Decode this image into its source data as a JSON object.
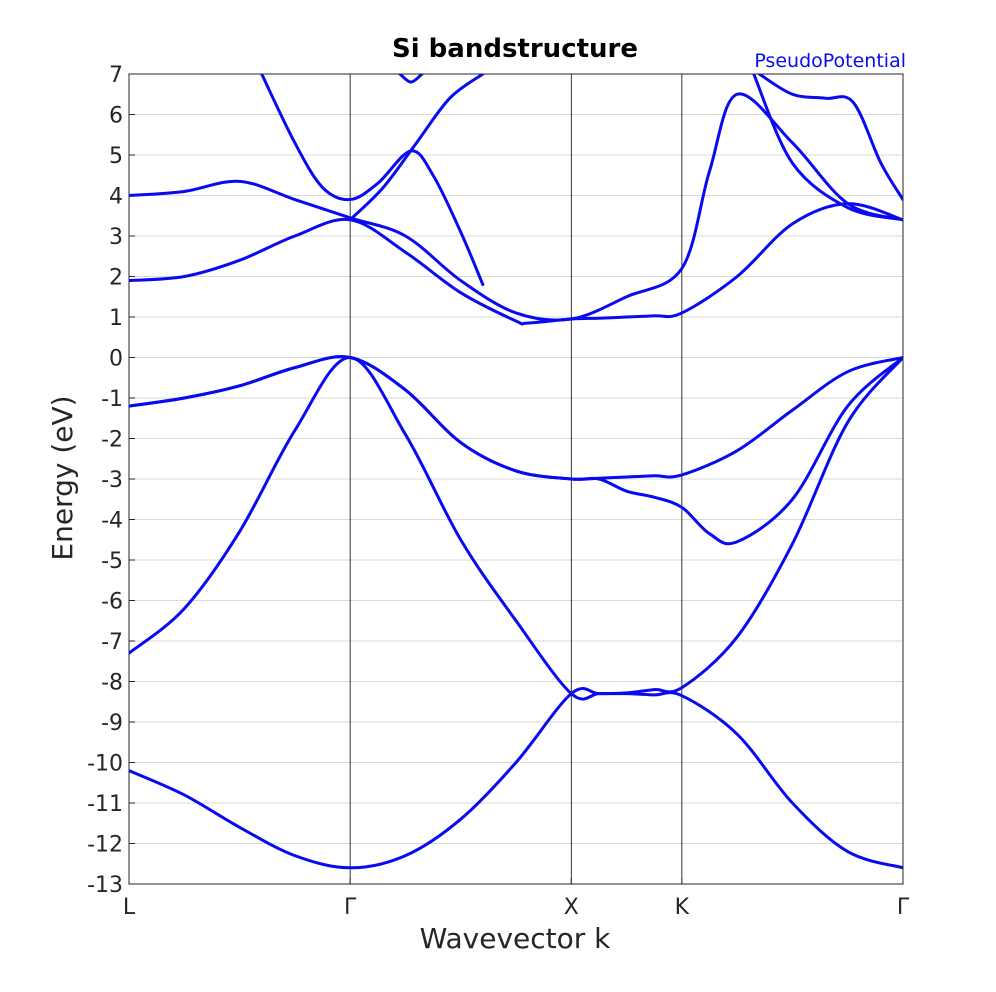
{
  "chart_data": {
    "type": "line",
    "title": "Si bandstructure",
    "xlabel": "Wavevector k",
    "ylabel": "Energy (eV)",
    "ylim": [
      -13,
      7
    ],
    "yticks": [
      7,
      6,
      5,
      4,
      3,
      2,
      1,
      0,
      -1,
      -2,
      -3,
      -4,
      -5,
      -6,
      -7,
      -8,
      -9,
      -10,
      -11,
      -12,
      -13
    ],
    "ytick_labels": [
      "7",
      "6",
      "5",
      "4",
      "3",
      "2",
      "1",
      "0",
      "-1",
      "-2",
      "-3",
      "-4",
      "-5",
      "-6",
      "-7",
      "-8",
      "-9",
      "-10",
      "-11",
      "-12",
      "-13"
    ],
    "xlim": [
      0,
      7
    ],
    "kpoints": [
      {
        "label": "L",
        "x": 0
      },
      {
        "label": "Γ",
        "x": 2
      },
      {
        "label": "X",
        "x": 4
      },
      {
        "label": "K",
        "x": 5
      },
      {
        "label": "Γ",
        "x": 7
      }
    ],
    "grid": true,
    "legend": {
      "label": "PseudoPotential",
      "placement": "top-right"
    },
    "color": "#0a0af0",
    "series": [
      {
        "x": [
          0,
          0.5,
          1,
          1.5,
          2,
          2.5,
          3,
          3.5,
          4,
          4.25,
          4.5,
          4.75,
          5,
          5.5,
          6,
          6.5,
          7
        ],
        "y": [
          -10.2,
          -10.8,
          -11.6,
          -12.3,
          -12.6,
          -12.3,
          -11.4,
          -10.0,
          -8.3,
          -8.3,
          -8.3,
          -8.33,
          -8.35,
          -9.3,
          -11.0,
          -12.2,
          -12.6
        ]
      },
      {
        "x": [
          0,
          0.5,
          1,
          1.5,
          2,
          2.5,
          3,
          3.5,
          4,
          4.25,
          4.5,
          4.75,
          5,
          5.5,
          6,
          6.5,
          7
        ],
        "y": [
          -7.3,
          -6.2,
          -4.3,
          -1.8,
          0.0,
          -1.9,
          -4.5,
          -6.5,
          -8.3,
          -8.3,
          -8.28,
          -8.2,
          -8.15,
          -6.9,
          -4.6,
          -1.6,
          0.0
        ]
      },
      {
        "x": [
          0,
          0.5,
          1,
          1.5,
          2,
          2.5,
          3,
          3.5,
          4,
          4.25,
          4.5,
          4.75,
          5,
          5.25,
          5.5,
          6,
          6.5,
          7
        ],
        "y": [
          -1.2,
          -1.0,
          -0.7,
          -0.25,
          0.0,
          -0.8,
          -2.1,
          -2.8,
          -3.0,
          -3.0,
          -3.3,
          -3.45,
          -3.7,
          -4.35,
          -4.55,
          -3.5,
          -1.2,
          0.0
        ]
      },
      {
        "x": [
          0,
          0.5,
          1,
          1.5,
          2,
          2.5,
          3,
          3.5,
          4,
          4.25,
          4.5,
          4.75,
          5,
          5.5,
          6,
          6.5,
          7
        ],
        "y": [
          -1.2,
          -1.0,
          -0.7,
          -0.25,
          0.0,
          -0.8,
          -2.1,
          -2.8,
          -3.0,
          -2.98,
          -2.95,
          -2.92,
          -2.9,
          -2.3,
          -1.3,
          -0.35,
          0.0
        ]
      },
      {
        "x": [
          0,
          0.5,
          1,
          1.5,
          2,
          2.5,
          3,
          3.5,
          3.6,
          4,
          4.25,
          4.5,
          4.75,
          5,
          5.5,
          6,
          6.5,
          7
        ],
        "y": [
          1.9,
          2.0,
          2.4,
          3.0,
          3.4,
          2.6,
          1.6,
          0.9,
          0.85,
          0.95,
          0.97,
          1.0,
          1.03,
          1.1,
          2.0,
          3.3,
          3.8,
          3.4
        ]
      },
      {
        "x": [
          0,
          0.5,
          1,
          1.5,
          2,
          2.5,
          3,
          3.5,
          4,
          4.5,
          5,
          5.25,
          5.5,
          6,
          6.5,
          7
        ],
        "y": [
          4.0,
          4.1,
          4.35,
          3.9,
          3.45,
          3.0,
          1.9,
          1.1,
          0.95,
          1.5,
          2.2,
          4.6,
          6.5,
          5.3,
          3.8,
          3.4
        ]
      },
      {
        "x": [
          1.2,
          1.5,
          1.75,
          2,
          2.25,
          2.55,
          2.75,
          3.0,
          3.2
        ],
        "y": [
          7.0,
          5.3,
          4.2,
          3.9,
          4.3,
          5.1,
          4.5,
          3.1,
          1.8
        ]
      },
      {
        "x": [
          2,
          2.3,
          2.6,
          2.9,
          3.2
        ],
        "y": [
          3.4,
          4.2,
          5.3,
          6.4,
          7.0
        ]
      },
      {
        "x": [
          2.45,
          2.55,
          2.65
        ],
        "y": [
          7.0,
          6.8,
          7.0
        ]
      },
      {
        "x": [
          5.65,
          6.0,
          6.5,
          7
        ],
        "y": [
          7.0,
          4.8,
          3.7,
          3.4
        ]
      },
      {
        "x": [
          5.7,
          6.0,
          6.3,
          6.55,
          6.8,
          7
        ],
        "y": [
          7.0,
          6.5,
          6.4,
          6.3,
          4.8,
          3.9
        ]
      }
    ]
  }
}
